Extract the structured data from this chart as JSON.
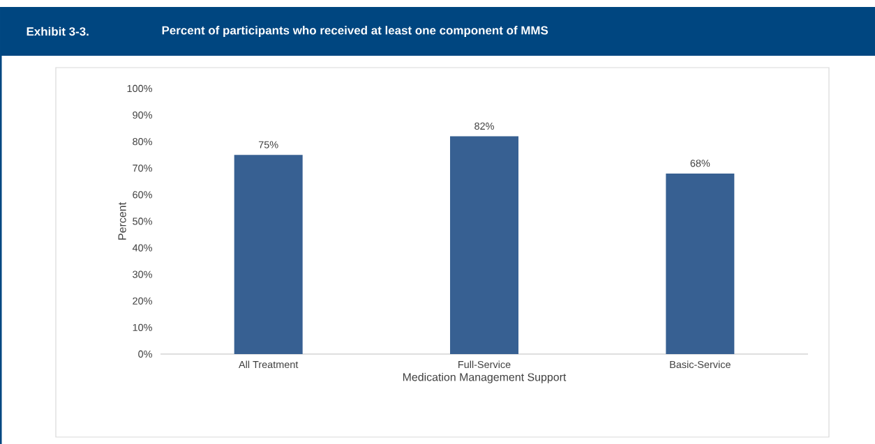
{
  "chart_data": {
    "type": "bar",
    "title": "Exhibit 3-3.",
    "subtitle": "Percent of participants who received at least one component of MMS",
    "xlabel": "Medication Management Support",
    "ylabel": "Percent",
    "categories": [
      "All Treatment",
      "Full-Service",
      "Basic-Service"
    ],
    "values": [
      75,
      82,
      68
    ],
    "color": "#376092",
    "value_labels": [
      "75%",
      "82%",
      "68%"
    ],
    "ylim": [
      0,
      100
    ],
    "yticks": [
      {
        "value": 0,
        "label": "0%"
      },
      {
        "value": 10,
        "label": "10%"
      },
      {
        "value": 20,
        "label": "20%"
      },
      {
        "value": 30,
        "label": "30%"
      },
      {
        "value": 40,
        "label": "40%"
      },
      {
        "value": 50,
        "label": "50%"
      },
      {
        "value": 60,
        "label": "60%"
      },
      {
        "value": 70,
        "label": "70%"
      },
      {
        "value": 80,
        "label": "80%"
      },
      {
        "value": 90,
        "label": "90%"
      },
      {
        "value": 100,
        "label": "100%"
      }
    ]
  }
}
